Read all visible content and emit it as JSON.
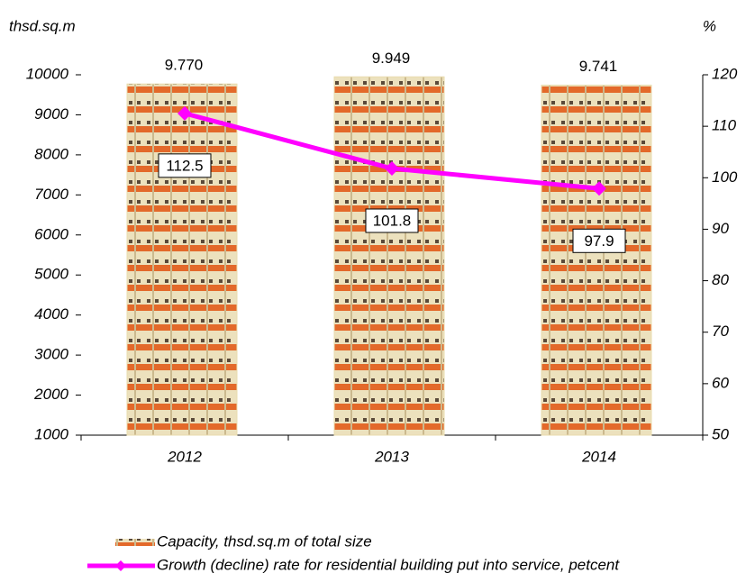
{
  "chart_data": {
    "type": "bar",
    "y_label": "thsd.sq.m",
    "y2_label": "%",
    "categories": [
      "2012",
      "2013",
      "2014"
    ],
    "series": [
      {
        "name": "Capacity, thsd.sq.m of total size",
        "type": "bar",
        "color": "#e9dcae",
        "values": [
          9770,
          9949,
          9741
        ],
        "value_labels": [
          "9.770",
          "9.949",
          "9.741"
        ]
      },
      {
        "name": "Growth (decline) rate for residential building put into service, petcent",
        "type": "line",
        "axis": "y2",
        "color": "#ff00ff",
        "values": [
          112.5,
          101.8,
          97.9
        ]
      }
    ],
    "ylim": [
      1000,
      10000
    ],
    "yticks": [
      1000,
      2000,
      3000,
      4000,
      5000,
      6000,
      7000,
      8000,
      9000,
      10000
    ],
    "y2lim": [
      50,
      120
    ],
    "y2ticks": [
      50,
      60,
      70,
      80,
      90,
      100,
      110,
      120
    ]
  }
}
